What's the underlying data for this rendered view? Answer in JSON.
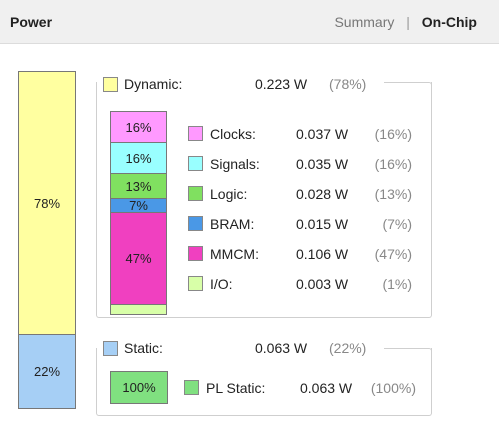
{
  "header": {
    "title": "Power",
    "tabs": [
      "Summary",
      "On-Chip"
    ],
    "separator": "|",
    "active_tab": "On-Chip"
  },
  "total_bar": [
    {
      "label": "78%",
      "fraction": 0.78,
      "color": "#ffffa0"
    },
    {
      "label": "22%",
      "fraction": 0.22,
      "color": "#a6cff5"
    }
  ],
  "dynamic": {
    "name": "Dynamic:",
    "value": "0.223 W",
    "pct": "(78%)",
    "color": "#ffffa0",
    "components": [
      {
        "name": "Clocks:",
        "value": "0.037 W",
        "pct": "(16%)",
        "bar_label": "16%",
        "fraction": 0.16,
        "color": "#ff99ff"
      },
      {
        "name": "Signals:",
        "value": "0.035 W",
        "pct": "(16%)",
        "bar_label": "16%",
        "fraction": 0.16,
        "color": "#99ffff"
      },
      {
        "name": "Logic:",
        "value": "0.028 W",
        "pct": "(13%)",
        "bar_label": "13%",
        "fraction": 0.13,
        "color": "#80e060"
      },
      {
        "name": "BRAM:",
        "value": "0.015 W",
        "pct": "(7%)",
        "bar_label": "7%",
        "fraction": 0.07,
        "color": "#4a98e6"
      },
      {
        "name": "MMCM:",
        "value": "0.106 W",
        "pct": "(47%)",
        "bar_label": "47%",
        "fraction": 0.47,
        "color": "#f040c0"
      },
      {
        "name": "I/O:",
        "value": "0.003 W",
        "pct": "(1%)",
        "bar_label": "",
        "fraction": 0.01,
        "color": "#d8ffa8"
      }
    ]
  },
  "static": {
    "name": "Static:",
    "value": "0.063 W",
    "pct": "(22%)",
    "color": "#a6cff5",
    "components": [
      {
        "name": "PL Static:",
        "value": "0.063 W",
        "pct": "(100%)",
        "bar_label": "100%",
        "color": "#80e080"
      }
    ]
  }
}
